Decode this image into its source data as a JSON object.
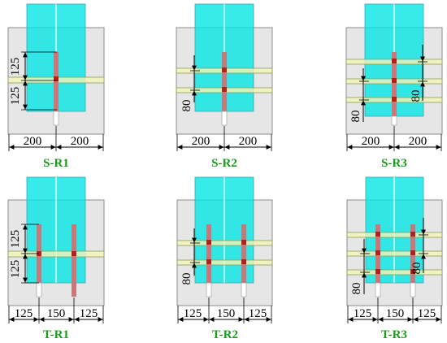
{
  "colors": {
    "block": "#e6e6e6",
    "block_border": "#8c8c8c",
    "frp_sheet": "#00e5e5",
    "rebar": "#c87878",
    "rebar_gauge": "#b02020",
    "anchor_strip": "#f4f4b8",
    "anchor_line": "#8aa05a",
    "caption": "#1a9a1a",
    "dimension": "#000000"
  },
  "specimens": [
    {
      "id": "S-R1",
      "caption": "S-R1",
      "bottom_dims": [
        "200",
        "200"
      ],
      "side_dims": [
        "125",
        "125"
      ]
    },
    {
      "id": "S-R2",
      "caption": "S-R2",
      "bottom_dims": [
        "200",
        "200"
      ],
      "side_dims": [
        "80"
      ]
    },
    {
      "id": "S-R3",
      "caption": "S-R3",
      "bottom_dims": [
        "200",
        "200"
      ],
      "side_dims": [
        "80",
        "80"
      ]
    },
    {
      "id": "T-R1",
      "caption": "T-R1",
      "bottom_dims": [
        "125",
        "150",
        "125"
      ],
      "side_dims": [
        "125",
        "125"
      ]
    },
    {
      "id": "T-R2",
      "caption": "T-R2",
      "bottom_dims": [
        "125",
        "150",
        "125"
      ],
      "side_dims": [
        "80"
      ]
    },
    {
      "id": "T-R3",
      "caption": "T-R3",
      "bottom_dims": [
        "125",
        "150",
        "125"
      ],
      "side_dims": [
        "80",
        "80"
      ]
    }
  ]
}
